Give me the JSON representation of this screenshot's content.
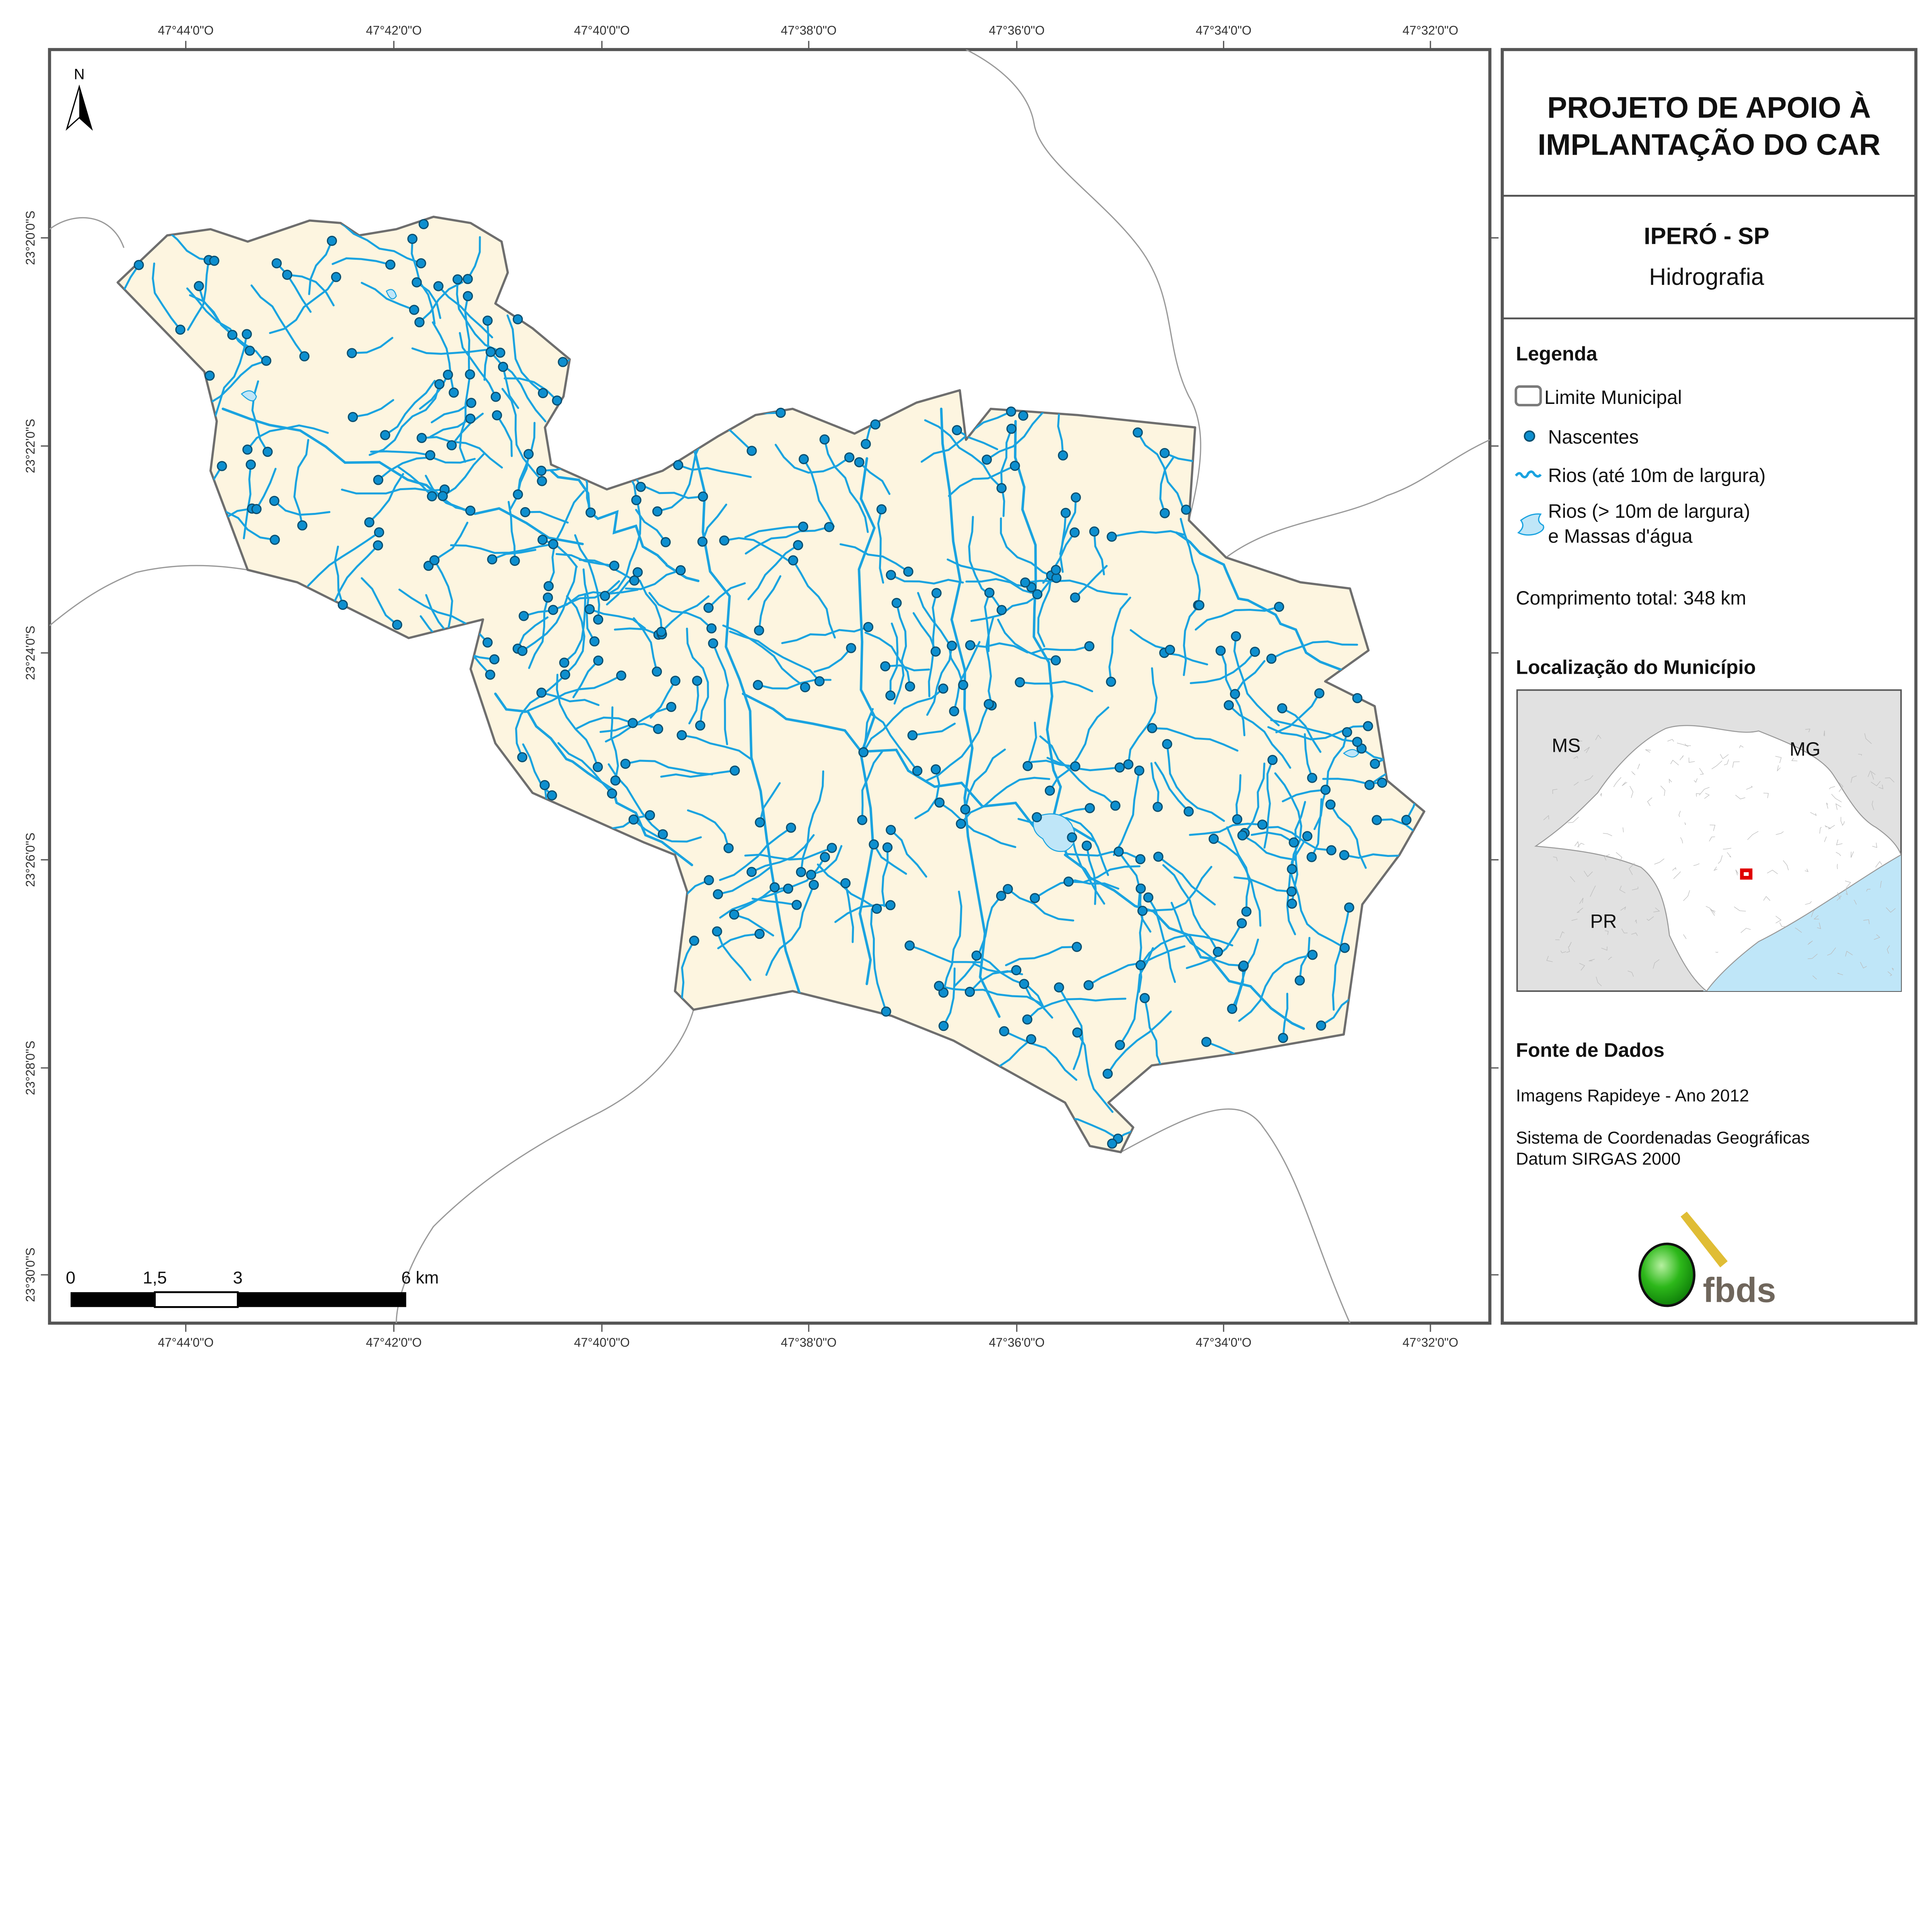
{
  "title": {
    "line1": "PROJETO DE APOIO À",
    "line2": "IMPLANTAÇÃO DO CAR"
  },
  "municipality": {
    "name": "IPERÓ - SP",
    "theme": "Hidrografia"
  },
  "legend": {
    "heading": "Legenda",
    "items": [
      {
        "label": "Limite Municipal",
        "icon": "polygon-outline-icon",
        "color": "#7a7a7a"
      },
      {
        "label": "Nascentes",
        "icon": "point-icon",
        "color": "#0d8fcf"
      },
      {
        "label": "Rios (até 10m de largura)",
        "icon": "river-line-icon",
        "color": "#1aa3e0"
      },
      {
        "label_line1": "Rios (> 10m de largura)",
        "label_line2": "e Massas d'água",
        "icon": "water-body-icon",
        "color": "#bfe6f8"
      }
    ],
    "total_length": "Comprimento total:  348 km"
  },
  "location": {
    "heading": "Localização do Município",
    "labels": [
      "MS",
      "MG",
      "PR"
    ],
    "highlight_color": "#e00000"
  },
  "sources": {
    "heading": "Fonte de Dados",
    "line1": "Imagens Rapideye - Ano 2012",
    "line2": "Sistema de Coordenadas Geográficas",
    "line3": "Datum SIRGAS 2000"
  },
  "logo": {
    "text": "fbds"
  },
  "north": "N",
  "scale_bar": {
    "labels": [
      "0",
      "1,5",
      "3",
      "6 km"
    ]
  },
  "graticule": {
    "longitudes": [
      "47°44'0\"O",
      "47°42'0\"O",
      "47°40'0\"O",
      "47°38'0\"O",
      "47°36'0\"O",
      "47°34'0\"O",
      "47°32'0\"O"
    ],
    "latitudes": [
      "23°20'0\"S",
      "23°22'0\"S",
      "23°24'0\"S",
      "23°26'0\"S",
      "23°28'0\"S",
      "23°30'0\"S"
    ]
  },
  "colors": {
    "municipality_fill": "#fdf5e0",
    "river": "#1aa3e0",
    "spring": "#0d8fcf",
    "frame": "#555555"
  }
}
